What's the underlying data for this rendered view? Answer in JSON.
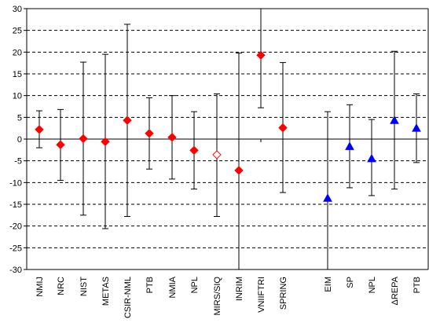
{
  "chart_data": {
    "type": "scatter",
    "title": "",
    "xlabel": "",
    "ylabel": "",
    "ylim": [
      -30,
      30
    ],
    "yticks": [
      30,
      25,
      20,
      15,
      10,
      5,
      0,
      -5,
      -10,
      -15,
      -20,
      -25,
      -30
    ],
    "grid": {
      "horizontal": true,
      "style": "dashed"
    },
    "legend": "none",
    "colors": {
      "red": "#ff0000",
      "blue": "#0000ff",
      "bar": "#000000",
      "grid": "#000000"
    },
    "points": [
      {
        "label": "NMIJ",
        "value": 2.2,
        "upper": 6.5,
        "lower": -2.0,
        "marker": "diamond-filled",
        "color": "#ff0000"
      },
      {
        "label": "NRC",
        "value": -1.3,
        "upper": 6.8,
        "lower": -9.5,
        "marker": "diamond-filled",
        "color": "#ff0000"
      },
      {
        "label": "NIST",
        "value": 0.1,
        "upper": 17.7,
        "lower": -17.5,
        "marker": "diamond-filled",
        "color": "#ff0000"
      },
      {
        "label": "METAS",
        "value": -0.6,
        "upper": 19.5,
        "lower": -20.6,
        "marker": "diamond-filled",
        "color": "#ff0000"
      },
      {
        "label": "CSIR-NML",
        "value": 4.3,
        "upper": 26.4,
        "lower": -17.8,
        "marker": "diamond-filled",
        "color": "#ff0000"
      },
      {
        "label": "PTB",
        "value": 1.3,
        "upper": 9.5,
        "lower": -6.9,
        "marker": "diamond-filled",
        "color": "#ff0000"
      },
      {
        "label": "NMIA",
        "value": 0.4,
        "upper": 10.0,
        "lower": -9.2,
        "marker": "diamond-filled",
        "color": "#ff0000"
      },
      {
        "label": "NPL",
        "value": -2.6,
        "upper": 6.3,
        "lower": -11.5,
        "marker": "diamond-filled",
        "color": "#ff0000"
      },
      {
        "label": "MIRS/SIQ",
        "value": -3.6,
        "upper": 10.4,
        "lower": -17.8,
        "marker": "diamond-open",
        "color": "#ff0000"
      },
      {
        "label": "INRIM",
        "value": -7.2,
        "upper": 19.8,
        "lower": -30.0,
        "marker": "diamond-filled",
        "color": "#ff0000"
      },
      {
        "label": "VNIIFTRI",
        "value": 19.3,
        "upper": 30.0,
        "lower": 7.2,
        "marker": "diamond-filled",
        "color": "#ff0000"
      },
      {
        "label": "SPRING",
        "value": 2.6,
        "upper": 17.6,
        "lower": -12.3,
        "marker": "diamond-filled",
        "color": "#ff0000"
      },
      {
        "label": "EIM",
        "value": -13.6,
        "upper": 6.3,
        "lower": -30.0,
        "marker": "triangle-filled",
        "color": "#0000ff"
      },
      {
        "label": "SP",
        "value": -1.7,
        "upper": 7.9,
        "lower": -11.2,
        "marker": "triangle-filled",
        "color": "#0000ff"
      },
      {
        "label": "NPL",
        "value": -4.5,
        "upper": 4.5,
        "lower": -13.0,
        "marker": "triangle-filled",
        "color": "#0000ff"
      },
      {
        "label": "ΔREPA",
        "value": 4.3,
        "upper": 20.2,
        "lower": -11.5,
        "marker": "triangle-filled",
        "color": "#0000ff"
      },
      {
        "label": "PTB",
        "value": 2.5,
        "upper": 10.4,
        "lower": -5.4,
        "marker": "triangle-filled",
        "color": "#0000ff"
      }
    ]
  }
}
